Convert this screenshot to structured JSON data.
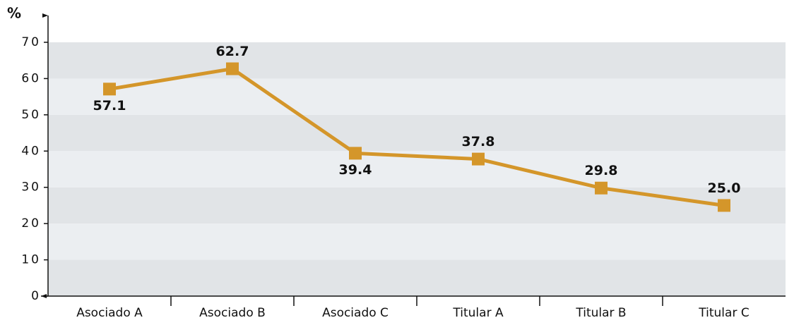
{
  "chart_data": {
    "type": "line",
    "y_label": "%",
    "categories": [
      "Asociado A",
      "Asociado B",
      "Asociado C",
      "Titular A",
      "Titular B",
      "Titular C"
    ],
    "series": [
      {
        "name": "%",
        "color": "#d4962a",
        "values": [
          57.1,
          62.7,
          39.4,
          37.8,
          29.8,
          25
        ],
        "value_labels": [
          "57.1",
          "62.7",
          "39.4",
          "37.8",
          "29.8",
          "25.0"
        ]
      }
    ],
    "ylim": [
      0,
      70
    ],
    "yticks": [
      0,
      10,
      20,
      30,
      40,
      50,
      60,
      70
    ],
    "banded_background": true
  }
}
